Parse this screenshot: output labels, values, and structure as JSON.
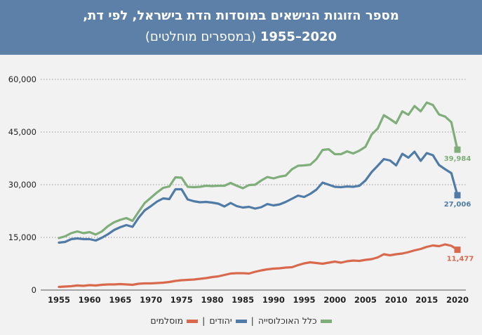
{
  "header": {
    "title_line1": "מספר הזוגות הנישאים במוסדות הדת בישראל, לפי דת,",
    "title_years": "2020–1955",
    "title_sub": "(במספרים מוחלטים)"
  },
  "chart_data": {
    "type": "line",
    "title": "מספר הזוגות הנישאים במוסדות הדת בישראל, לפי דת, 2020–1955 (במספרים מוחלטים)",
    "x_ticks": [
      1955,
      1960,
      1965,
      1970,
      1975,
      1980,
      1985,
      1990,
      1995,
      2000,
      2005,
      2010,
      2015,
      2020
    ],
    "y_ticks": [
      0,
      15000,
      30000,
      45000,
      60000
    ],
    "y_tick_labels": [
      "0",
      "15,000",
      "30,000",
      "45,000",
      "60,000"
    ],
    "xlim": [
      1955,
      2020
    ],
    "ylim": [
      0,
      60000
    ],
    "grid": "horizontal dotted",
    "legend_position": "bottom",
    "x": [
      1955,
      1956,
      1957,
      1958,
      1959,
      1960,
      1961,
      1962,
      1963,
      1964,
      1965,
      1966,
      1967,
      1968,
      1969,
      1970,
      1971,
      1972,
      1973,
      1974,
      1975,
      1976,
      1977,
      1978,
      1979,
      1980,
      1981,
      1982,
      1983,
      1984,
      1985,
      1986,
      1987,
      1988,
      1989,
      1990,
      1991,
      1992,
      1993,
      1994,
      1995,
      1996,
      1997,
      1998,
      1999,
      2000,
      2001,
      2002,
      2003,
      2004,
      2005,
      2006,
      2007,
      2008,
      2009,
      2010,
      2011,
      2012,
      2013,
      2014,
      2015,
      2016,
      2017,
      2018,
      2019,
      2020
    ],
    "series": [
      {
        "name": "כלל האוכלוסייה",
        "color": "#7fae7a",
        "values": [
          14800,
          15300,
          16200,
          16700,
          16200,
          16500,
          15800,
          16700,
          18200,
          19300,
          20000,
          20500,
          19700,
          22300,
          24800,
          26300,
          27800,
          29100,
          29500,
          32100,
          32000,
          29400,
          29300,
          29400,
          29700,
          29600,
          29700,
          29700,
          30500,
          29700,
          29000,
          29900,
          30000,
          31200,
          32200,
          31800,
          32300,
          32600,
          34400,
          35400,
          35500,
          35700,
          37300,
          39900,
          40100,
          38700,
          38700,
          39500,
          38900,
          39700,
          40800,
          44300,
          46000,
          49800,
          48700,
          47500,
          50900,
          49900,
          52400,
          50900,
          53400,
          52700,
          50000,
          49400,
          47800,
          39984
        ]
      },
      {
        "name": "יהודים",
        "color": "#4f7ba6",
        "values": [
          13500,
          13700,
          14500,
          14700,
          14500,
          14500,
          14100,
          14900,
          15900,
          17100,
          17900,
          18500,
          18000,
          20600,
          22700,
          23900,
          25200,
          26100,
          25900,
          28700,
          28700,
          25800,
          25300,
          25000,
          25100,
          24900,
          24600,
          23800,
          24800,
          23900,
          23500,
          23700,
          23200,
          23600,
          24500,
          24100,
          24400,
          25100,
          26000,
          26900,
          26500,
          27400,
          28600,
          30600,
          30000,
          29400,
          29300,
          29500,
          29400,
          29700,
          31200,
          33600,
          35400,
          37300,
          36900,
          35500,
          38800,
          37700,
          39400,
          36800,
          39000,
          38400,
          35600,
          34400,
          33300,
          27006
        ]
      },
      {
        "name": "מוסלמים",
        "color": "#d9694d",
        "values": [
          900,
          1000,
          1100,
          1300,
          1200,
          1400,
          1300,
          1500,
          1600,
          1600,
          1700,
          1600,
          1500,
          1800,
          1900,
          1900,
          2000,
          2100,
          2300,
          2600,
          2800,
          2900,
          3000,
          3200,
          3400,
          3700,
          3900,
          4300,
          4700,
          4800,
          4800,
          4700,
          5200,
          5600,
          5900,
          6100,
          6200,
          6400,
          6500,
          7100,
          7600,
          7900,
          7700,
          7500,
          7800,
          8100,
          7800,
          8200,
          8400,
          8300,
          8600,
          8800,
          9300,
          10200,
          9900,
          10200,
          10400,
          10800,
          11300,
          11700,
          12300,
          12700,
          12500,
          13000,
          12600,
          11477
        ]
      }
    ],
    "end_labels": [
      "39,984",
      "27,006",
      "11,477"
    ]
  },
  "legend": {
    "items": [
      {
        "label": "כלל האוכלוסייה",
        "color": "#7fae7a"
      },
      {
        "label": "יהודים",
        "color": "#4f7ba6"
      },
      {
        "label": "מוסלמים",
        "color": "#d9694d"
      }
    ],
    "separator": "|"
  }
}
